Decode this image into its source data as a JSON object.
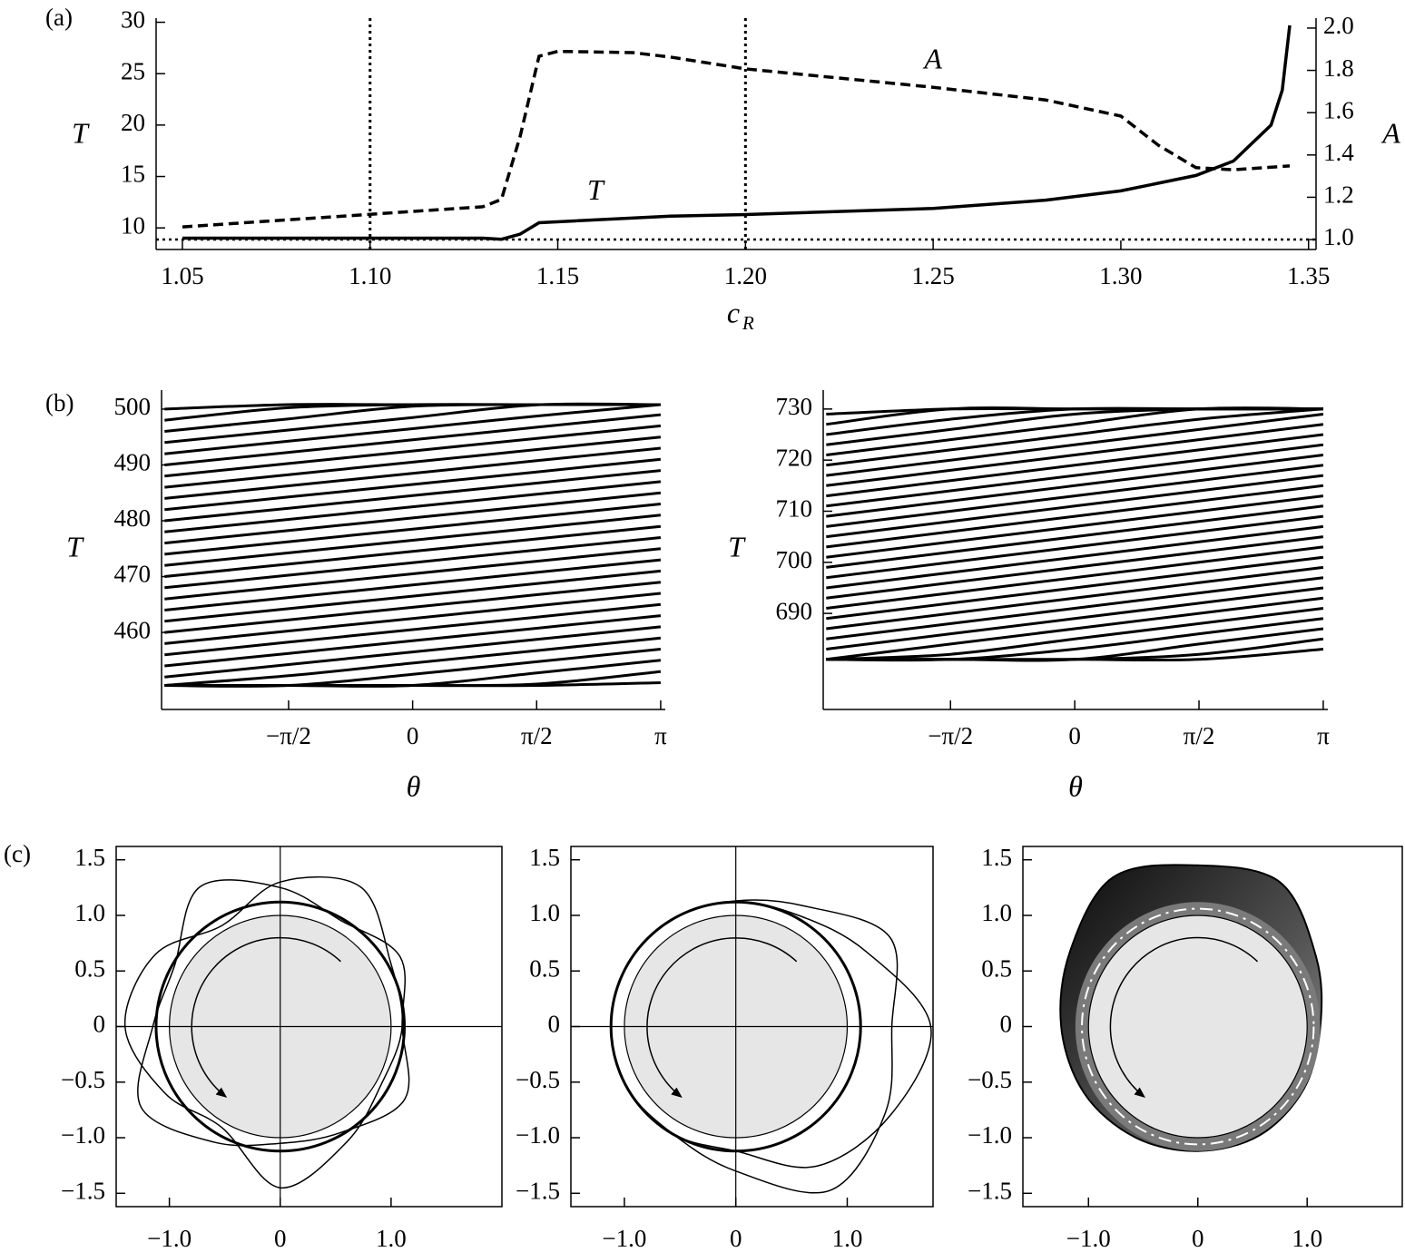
{
  "chart_data": [
    {
      "type": "line",
      "panel_label": "(a)",
      "xlabel": "c",
      "xlabel_subscript": "R",
      "ylabel": "T",
      "y2label": "A",
      "xlim": [
        1.043,
        1.352
      ],
      "ylim": [
        7.9,
        30.4
      ],
      "y2lim": [
        0.953,
        2.047
      ],
      "xticks": [
        1.05,
        {
          "value": 1.1,
          "label": "1.10"
        },
        1.15,
        {
          "value": 1.2,
          "label": "1.20"
        },
        1.25,
        {
          "value": 1.3,
          "label": "1.30"
        },
        1.35
      ],
      "yticks": [
        10,
        15,
        20,
        25,
        30
      ],
      "y2ticks": [
        {
          "value": 1,
          "label": "1.0"
        },
        1.2,
        1.4,
        1.6,
        1.8,
        {
          "value": 2,
          "label": "2.0"
        }
      ],
      "vlines": [
        1.1,
        1.2
      ],
      "hline_y2": 1.0,
      "series": [
        {
          "name": "T",
          "color": "#000000",
          "dash": "solid",
          "label_x": 1.16,
          "label_y": 13.4,
          "x": [
            1.05,
            1.13,
            1.135,
            1.14,
            1.145,
            1.18,
            1.2,
            1.25,
            1.28,
            1.3,
            1.32,
            1.33,
            1.34,
            1.343,
            1.345
          ],
          "values": [
            9.0,
            9.0,
            8.9,
            9.4,
            10.5,
            11.15,
            11.3,
            11.9,
            12.7,
            13.6,
            15.1,
            16.5,
            20.0,
            23.4,
            29.7
          ]
        },
        {
          "name": "A",
          "color": "#000000",
          "dash": "dashed",
          "axis": "y2",
          "label_x": 1.25,
          "label_y": 1.84,
          "x": [
            1.05,
            1.13,
            1.135,
            1.14,
            1.145,
            1.15,
            1.17,
            1.18,
            1.2,
            1.25,
            1.28,
            1.3,
            1.31,
            1.32,
            1.33,
            1.345
          ],
          "values": [
            1.06,
            1.155,
            1.19,
            1.49,
            1.867,
            1.89,
            1.884,
            1.863,
            1.807,
            1.72,
            1.66,
            1.584,
            1.446,
            1.34,
            1.33,
            1.348
          ]
        }
      ]
    },
    {
      "type": "multiline",
      "panel_label": "(b)",
      "xlabel": "θ",
      "ylabel": "T",
      "color": "#000000",
      "xlim": [
        -3.18,
        3.2
      ],
      "ylim": [
        446.2,
        503.4
      ],
      "xticks": [
        {
          "value": -1.5708,
          "label": "−π/2"
        },
        0,
        {
          "value": 1.5708,
          "label": "π/2"
        },
        {
          "value": 3.1416,
          "label": "π"
        }
      ],
      "yticks": [
        460,
        470,
        480,
        490,
        500
      ],
      "x": [
        -3.1416,
        -1.5708,
        0,
        1.5708,
        3.1416
      ],
      "series": [
        {
          "values": [
            450.5,
            450.5,
            450.5,
            450.5,
            451
          ]
        },
        {
          "values": [
            450.5,
            450.5,
            450.5,
            450.75,
            453
          ]
        },
        {
          "values": [
            450.5,
            450.5,
            450.5,
            452.75,
            455
          ]
        },
        {
          "values": [
            450.5,
            450.5,
            452.5,
            454.75,
            457
          ]
        },
        {
          "values": [
            450.5,
            452.25,
            454.5,
            456.75,
            459
          ]
        },
        {
          "values": [
            452,
            454.25,
            456.5,
            458.75,
            461
          ]
        },
        {
          "values": [
            454,
            456.25,
            458.5,
            460.75,
            463
          ]
        },
        {
          "values": [
            456,
            458.25,
            460.5,
            462.75,
            465
          ]
        },
        {
          "values": [
            458,
            460.25,
            462.5,
            464.75,
            467
          ]
        },
        {
          "values": [
            460,
            462.25,
            464.5,
            466.75,
            469
          ]
        },
        {
          "values": [
            462,
            464.25,
            466.5,
            468.75,
            471
          ]
        },
        {
          "values": [
            464,
            466.25,
            468.5,
            470.75,
            473
          ]
        },
        {
          "values": [
            466,
            468.25,
            470.5,
            472.75,
            475
          ]
        },
        {
          "values": [
            468,
            470.25,
            472.5,
            474.75,
            477
          ]
        },
        {
          "values": [
            470,
            472.25,
            474.5,
            476.75,
            479
          ]
        },
        {
          "values": [
            472,
            474.25,
            476.5,
            478.75,
            481
          ]
        },
        {
          "values": [
            474,
            476.25,
            478.5,
            480.75,
            483
          ]
        },
        {
          "values": [
            476,
            478.25,
            480.5,
            482.75,
            485
          ]
        },
        {
          "values": [
            478,
            480.25,
            482.5,
            484.75,
            487
          ]
        },
        {
          "values": [
            480,
            482.25,
            484.5,
            486.75,
            489
          ]
        },
        {
          "values": [
            482,
            484.25,
            486.5,
            488.75,
            491
          ]
        },
        {
          "values": [
            484,
            486.25,
            488.5,
            490.75,
            493
          ]
        },
        {
          "values": [
            486,
            488.25,
            490.5,
            492.75,
            495
          ]
        },
        {
          "values": [
            488,
            490.25,
            492.5,
            494.75,
            497
          ]
        },
        {
          "values": [
            490,
            492.25,
            494.5,
            496.75,
            499
          ]
        },
        {
          "values": [
            492,
            494.25,
            496.5,
            498.75,
            500.8
          ]
        },
        {
          "values": [
            494,
            496.25,
            498.5,
            500.75,
            500.8
          ]
        },
        {
          "values": [
            496,
            498.25,
            500.5,
            500.8,
            500.8
          ]
        },
        {
          "values": [
            498,
            500.25,
            500.8,
            500.8,
            500.8
          ]
        },
        {
          "values": [
            500,
            500.8,
            500.8,
            500.8,
            500.8
          ]
        }
      ]
    },
    {
      "type": "multiline",
      "xlabel": "θ",
      "ylabel": "T",
      "color": "#000000",
      "xlim": [
        -3.18,
        3.2
      ],
      "ylim": [
        671.2,
        733.7
      ],
      "xticks": [
        {
          "value": -1.5708,
          "label": "−π/2"
        },
        0,
        {
          "value": 1.5708,
          "label": "π/2"
        },
        {
          "value": 3.1416,
          "label": "π"
        }
      ],
      "yticks": [
        690,
        700,
        710,
        720,
        730
      ],
      "x": [
        -3.1416,
        -1.5708,
        0,
        1.5708,
        3.1416
      ],
      "series": [
        {
          "values": [
            681,
            681,
            681,
            681,
            683
          ]
        },
        {
          "values": [
            681,
            681,
            681,
            682,
            685
          ]
        },
        {
          "values": [
            681,
            681,
            681,
            684,
            687
          ]
        },
        {
          "values": [
            681,
            681,
            683,
            686,
            689
          ]
        },
        {
          "values": [
            681,
            682,
            685,
            688,
            691
          ]
        },
        {
          "values": [
            681,
            684,
            687,
            690,
            693
          ]
        },
        {
          "values": [
            683,
            686,
            689,
            692,
            695
          ]
        },
        {
          "values": [
            685,
            688,
            691,
            694,
            697
          ]
        },
        {
          "values": [
            687,
            690,
            693,
            696,
            699
          ]
        },
        {
          "values": [
            689,
            692,
            695,
            698,
            701
          ]
        },
        {
          "values": [
            691,
            694,
            697,
            700,
            703
          ]
        },
        {
          "values": [
            693,
            696,
            699,
            702,
            705
          ]
        },
        {
          "values": [
            695,
            698,
            701,
            704,
            707
          ]
        },
        {
          "values": [
            697,
            700,
            703,
            706,
            709
          ]
        },
        {
          "values": [
            699,
            702,
            705,
            708,
            711
          ]
        },
        {
          "values": [
            701,
            704,
            707,
            710,
            713
          ]
        },
        {
          "values": [
            703,
            706,
            709,
            712,
            715
          ]
        },
        {
          "values": [
            705,
            708,
            711,
            714,
            717
          ]
        },
        {
          "values": [
            707,
            710,
            713,
            716,
            719
          ]
        },
        {
          "values": [
            709,
            712,
            715,
            718,
            721
          ]
        },
        {
          "values": [
            711,
            714,
            717,
            720,
            723
          ]
        },
        {
          "values": [
            713,
            716,
            719,
            722,
            725
          ]
        },
        {
          "values": [
            715,
            718,
            721,
            724,
            727
          ]
        },
        {
          "values": [
            717,
            720,
            723,
            726,
            729
          ]
        },
        {
          "values": [
            719,
            722,
            725,
            728,
            730
          ]
        },
        {
          "values": [
            721,
            724,
            727,
            730,
            730
          ]
        },
        {
          "values": [
            723,
            726,
            729,
            730,
            730
          ]
        },
        {
          "values": [
            725,
            728,
            730,
            730,
            730
          ]
        },
        {
          "values": [
            727,
            730,
            730,
            730,
            730
          ]
        },
        {
          "values": [
            729,
            730,
            730,
            730,
            730
          ]
        }
      ]
    },
    {
      "type": "orbit",
      "panel_label": "(c)",
      "axes_lines": true,
      "shaded": false,
      "xlim": [
        -1.48,
        2.0
      ],
      "ylim": [
        -1.62,
        1.62
      ],
      "xticks": [
        {
          "value": -1,
          "label": "−1.0"
        },
        0,
        {
          "value": 1,
          "label": "1.0"
        }
      ],
      "yticks": [
        {
          "value": -1.5,
          "label": "−1.5"
        },
        {
          "value": -1,
          "label": "−1.0"
        },
        {
          "value": -0.5,
          "label": "−0.5"
        },
        0,
        0.5,
        {
          "value": 1,
          "label": "1.0"
        },
        1.5
      ],
      "disk_radius": 1,
      "ring_radius": 1.12,
      "angles": [
        0,
        30,
        60,
        90,
        120,
        150,
        180,
        210,
        240,
        270,
        300,
        330
      ],
      "curves": [
        {
          "r": [
            1.1,
            1.15,
            1.45,
            1.3,
            1.05,
            1.3,
            1.4,
            1.2,
            1.05,
            1.45,
            1.2,
            1.05
          ]
        },
        {
          "r": [
            1.1,
            1.25,
            1.1,
            1.25,
            1.45,
            1.1,
            1.15,
            1.45,
            1.2,
            1.05,
            1.1,
            1.3
          ]
        }
      ]
    },
    {
      "type": "orbit",
      "axes_lines": true,
      "shaded": false,
      "xlim": [
        -1.48,
        1.77
      ],
      "ylim": [
        -1.62,
        1.62
      ],
      "xticks": [
        {
          "value": -1,
          "label": "−1.0"
        },
        0,
        {
          "value": 1,
          "label": "1.0"
        }
      ],
      "yticks": [
        {
          "value": -1.5,
          "label": "−1.5"
        },
        {
          "value": -1,
          "label": "−1.0"
        },
        {
          "value": -0.5,
          "label": "−0.5"
        },
        0,
        0.5,
        {
          "value": 1,
          "label": "1.0"
        },
        1.5
      ],
      "disk_radius": 1,
      "ring_radius": 1.12,
      "angles": [
        0,
        30,
        60,
        90,
        120,
        150,
        180,
        210,
        240,
        270,
        300,
        330
      ],
      "curves": [
        {
          "r": [
            1.75,
            1.35,
            1.15,
            1.12,
            1.12,
            1.12,
            1.12,
            1.12,
            1.12,
            1.12,
            1.45,
            1.6
          ]
        },
        {
          "r": [
            1.4,
            1.6,
            1.25,
            1.13,
            1.12,
            1.12,
            1.12,
            1.12,
            1.12,
            1.3,
            1.7,
            1.55
          ]
        }
      ]
    },
    {
      "type": "orbit",
      "axes_lines": false,
      "shaded": true,
      "xlim": [
        -1.6,
        1.87
      ],
      "ylim": [
        -1.62,
        1.62
      ],
      "xticks": [
        {
          "value": -1,
          "label": "−1.0"
        },
        0,
        {
          "value": 1,
          "label": "1.0"
        }
      ],
      "yticks": [
        {
          "value": -1.5,
          "label": "−1.5"
        },
        {
          "value": -1,
          "label": "−1.0"
        },
        {
          "value": -0.5,
          "label": "−0.5"
        },
        0,
        0.5,
        {
          "value": 1,
          "label": "1.0"
        },
        1.5
      ],
      "disk_radius": 1,
      "ring_radius": 1.12,
      "angles": [
        0,
        30,
        60,
        90,
        120,
        150,
        180,
        210,
        240,
        270,
        300,
        330
      ],
      "curves": [
        {
          "r": [
            1.12,
            1.25,
            1.5,
            1.45,
            1.55,
            1.35,
            1.25,
            1.2,
            1.15,
            1.12,
            1.13,
            1.12
          ]
        }
      ]
    }
  ]
}
